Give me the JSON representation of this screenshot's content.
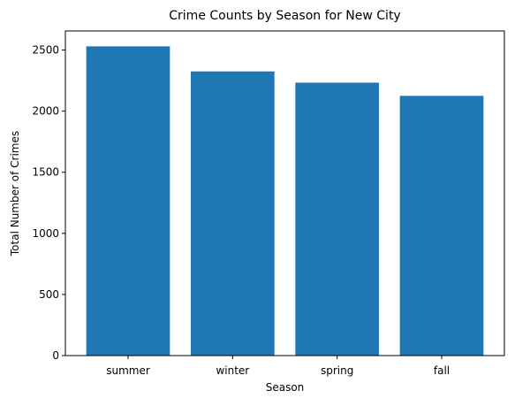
{
  "chart_data": {
    "type": "bar",
    "title": "Crime Counts by Season for New City",
    "xlabel": "Season",
    "ylabel": "Total Number of Crimes",
    "categories": [
      "summer",
      "winter",
      "spring",
      "fall"
    ],
    "values": [
      2530,
      2325,
      2233,
      2125
    ],
    "ylim": [
      0,
      2656
    ],
    "yticks": [
      0,
      500,
      1000,
      1500,
      2000,
      2500
    ],
    "ytick_labels": [
      "0",
      "500",
      "1000",
      "1500",
      "2000",
      "2500"
    ],
    "bar_color": "#1f77b4",
    "grid": false,
    "legend": "none"
  }
}
